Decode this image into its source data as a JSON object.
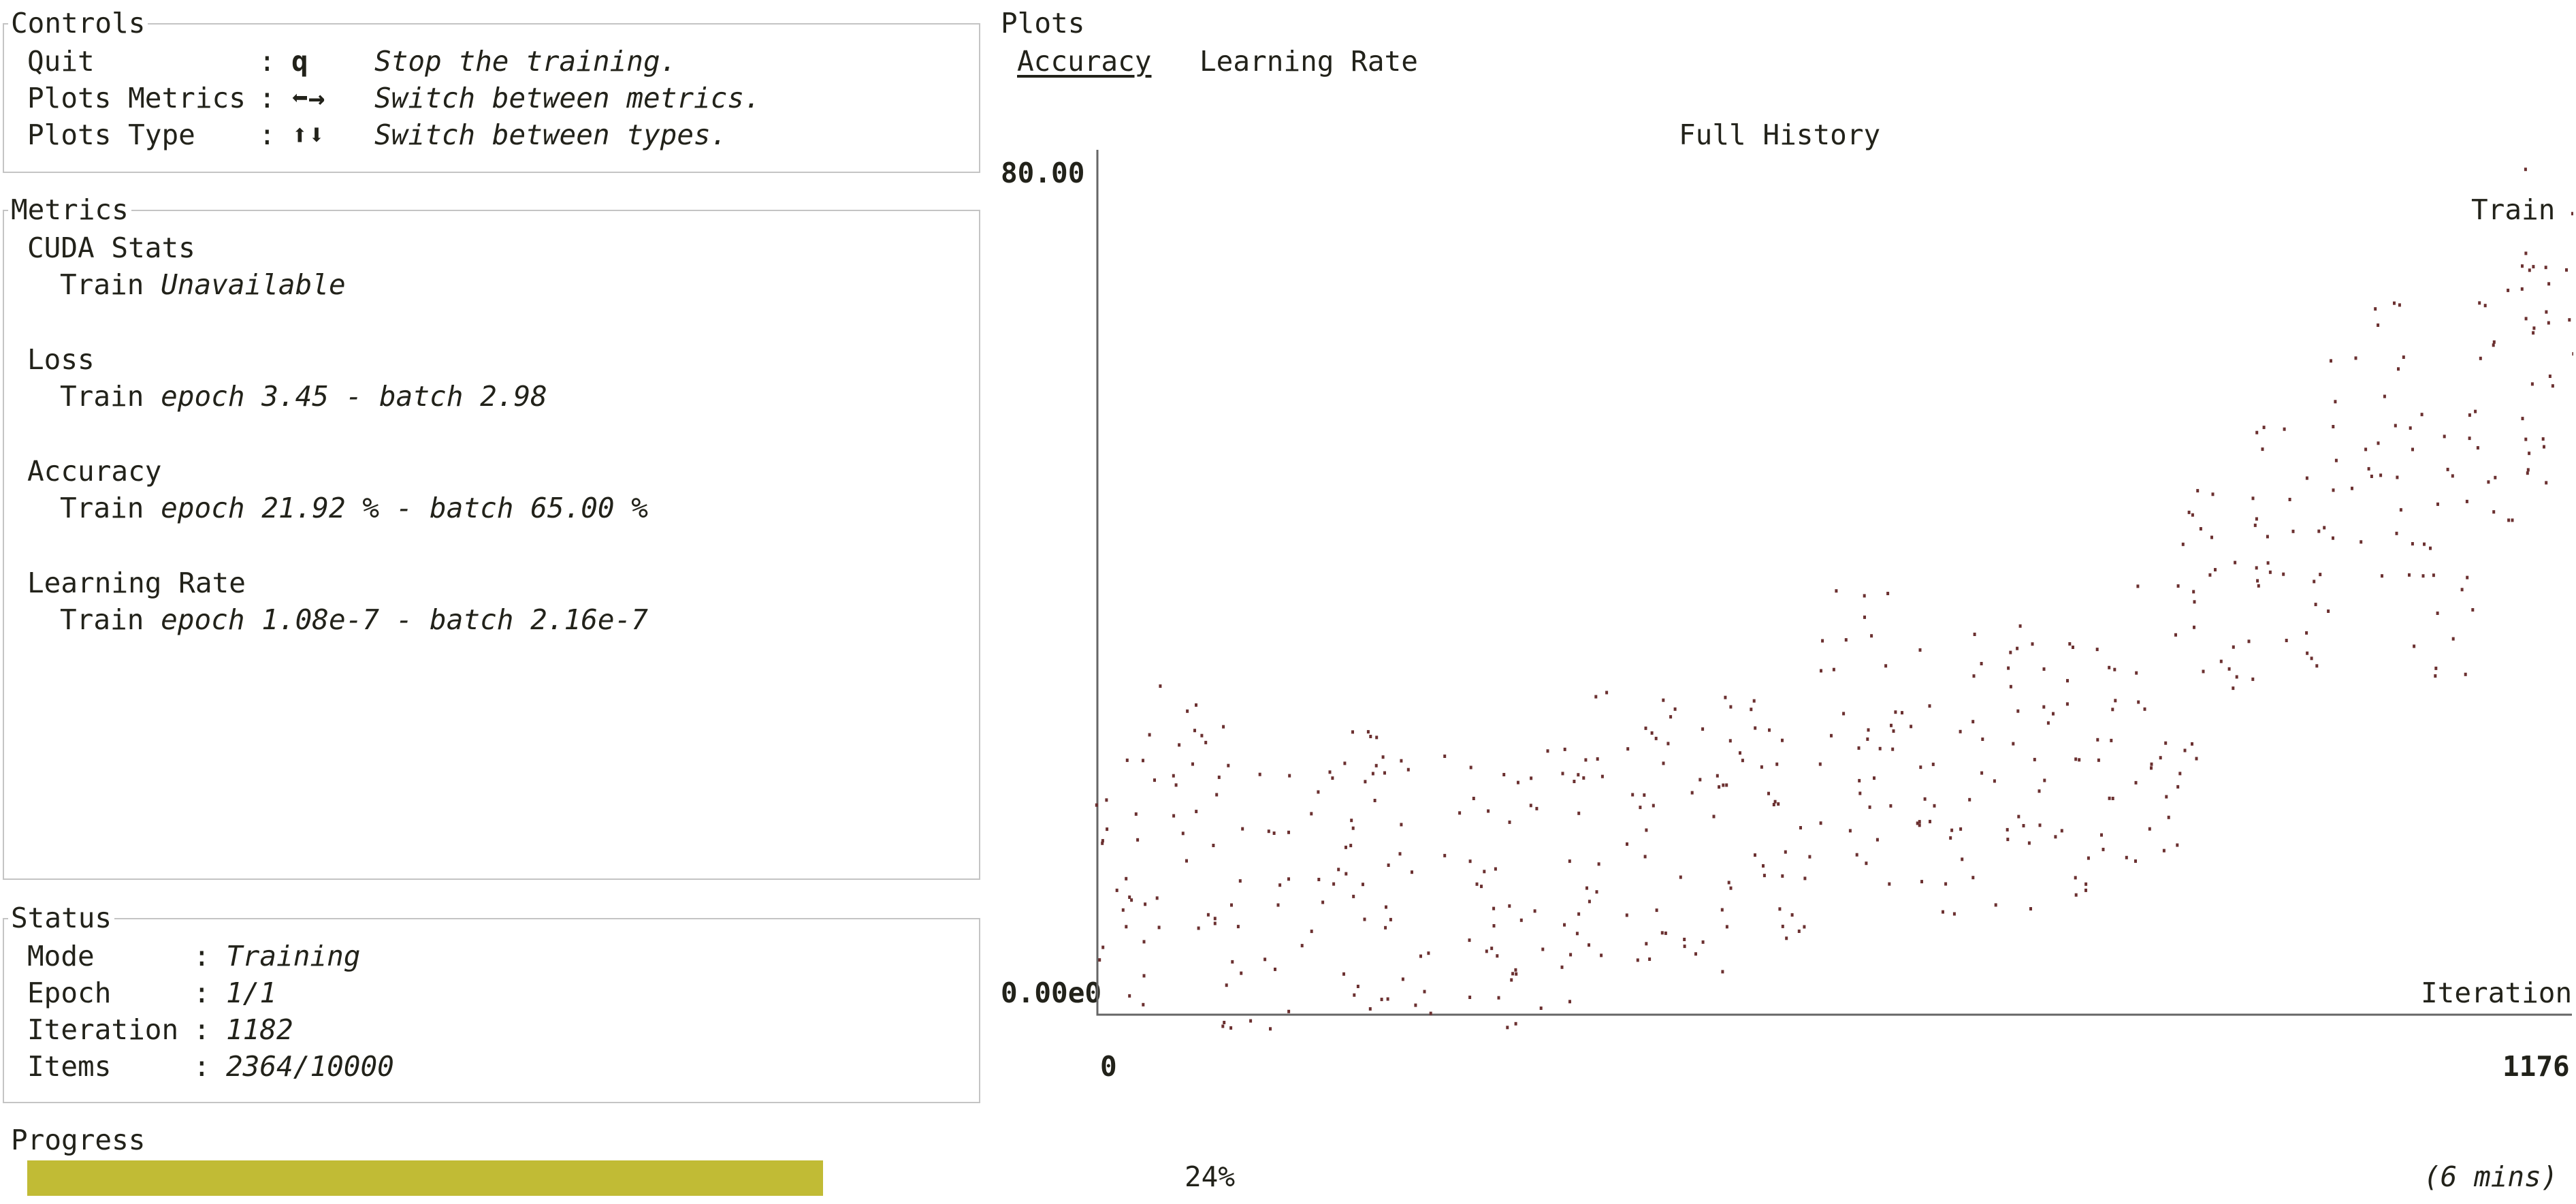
{
  "colors": {
    "text": "#22221a",
    "border": "#c4c4c4",
    "progress": "#c1bb35",
    "plot_point": "#6b3030",
    "legend": "#5a2323"
  },
  "controls": {
    "title": "Controls",
    "rows": [
      {
        "key": "Quit",
        "value": "q",
        "desc": "Stop the training."
      },
      {
        "key": "Plots Metrics",
        "value": "⬅→",
        "desc": "Switch between metrics."
      },
      {
        "key": "Plots Type",
        "value": "⬆⬇",
        "desc": "Switch between types."
      }
    ]
  },
  "metrics": {
    "title": "Metrics",
    "groups": [
      {
        "name": "CUDA Stats",
        "split": "Train",
        "value": "Unavailable"
      },
      {
        "name": "Loss",
        "split": "Train",
        "value": "epoch 3.45 - batch 2.98"
      },
      {
        "name": "Accuracy",
        "split": "Train",
        "value": "epoch 21.92 % - batch 65.00 %"
      },
      {
        "name": "Learning Rate",
        "split": "Train",
        "value": "epoch 1.08e-7 - batch 2.16e-7"
      }
    ]
  },
  "status": {
    "title": "Status",
    "rows": [
      {
        "key": "Mode",
        "value": "Training"
      },
      {
        "key": "Epoch",
        "value": "1/1"
      },
      {
        "key": "Iteration",
        "value": "1182"
      },
      {
        "key": "Items",
        "value": "2364/10000"
      }
    ]
  },
  "progress": {
    "label": "Progress",
    "percent_text": "24%",
    "fraction": 0.24,
    "eta": "(6 mins)"
  },
  "plots": {
    "title": "Plots",
    "tabs": [
      "Accuracy",
      "Learning Rate"
    ],
    "active_tab": 0
  },
  "chart_data": {
    "type": "scatter",
    "title": "Full History",
    "xlabel": "Iteration",
    "ylabel": "",
    "y_max_label": "80.00",
    "y_min_label": "0.00e0",
    "x_min_label": "0",
    "x_max_label": "1176",
    "xlim": [
      0,
      1176
    ],
    "ylim": [
      0,
      80
    ],
    "legend": "top-right",
    "series": [
      {
        "name": "Train",
        "x": [
          0,
          60,
          120,
          180,
          240,
          300,
          360,
          420,
          480,
          540,
          600,
          660,
          720,
          780,
          840,
          900,
          960,
          1020,
          1080,
          1140,
          1176
        ],
        "y": [
          10,
          18,
          8,
          12,
          11,
          10,
          10,
          16,
          15,
          15,
          26,
          20,
          22,
          20,
          26,
          36,
          42,
          54,
          44,
          60,
          72
        ]
      }
    ]
  }
}
